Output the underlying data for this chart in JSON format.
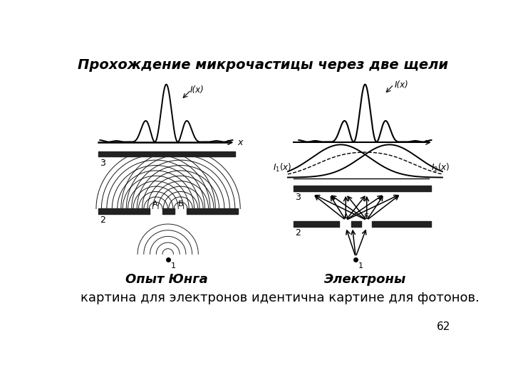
{
  "title": "Прохождение микрочастицы через две щели",
  "subtitle": "картина для электронов идентична картине для фотонов.",
  "left_label": "Опыт Юнга",
  "right_label": "Электроны",
  "page_number": "62",
  "bg_color": "#ffffff",
  "line_color": "#000000",
  "title_fontsize": 14,
  "label_fontsize": 13,
  "text_fontsize": 13
}
